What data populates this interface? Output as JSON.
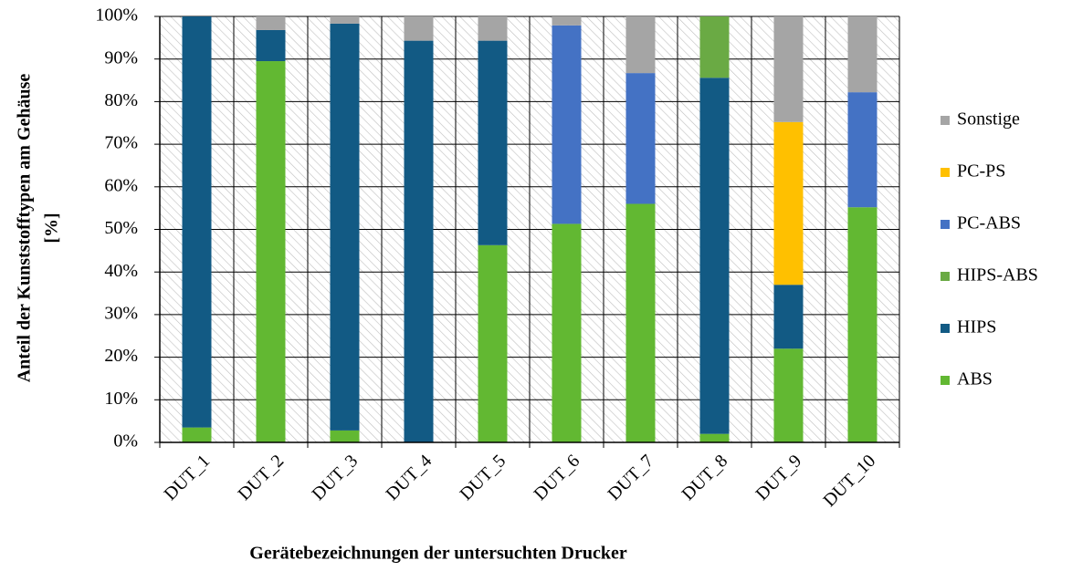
{
  "chart_data": {
    "type": "stacked_bar",
    "xlabel": "Gerätebezeichnungen der untersuchten Drucker",
    "ylabel": [
      "Anteil der Kunststofftypen am Gehäuse",
      "[%]"
    ],
    "categories": [
      "DUT_1",
      "DUT_2",
      "DUT_3",
      "DUT_4",
      "DUT_5",
      "DUT_6",
      "DUT_7",
      "DUT_8",
      "DUT_9",
      "DUT_10"
    ],
    "series": [
      {
        "name": "ABS",
        "color": "#62b832",
        "values": [
          3.5,
          89.5,
          2.8,
          0,
          46.3,
          51.3,
          56,
          2,
          22,
          55.2
        ]
      },
      {
        "name": "HIPS",
        "color": "#125a84",
        "values": [
          96.5,
          7.3,
          95.5,
          94.3,
          48,
          0,
          0,
          83.6,
          15,
          0
        ]
      },
      {
        "name": "HIPS-ABS",
        "color": "#6aaa44",
        "values": [
          0,
          0,
          0,
          0,
          0,
          0,
          0,
          14.4,
          0,
          0
        ]
      },
      {
        "name": "PC-ABS",
        "color": "#4472c4",
        "values": [
          0,
          0,
          0,
          0,
          0,
          46.6,
          30.7,
          0,
          0,
          27
        ]
      },
      {
        "name": "PC-PS",
        "color": "#ffc000",
        "values": [
          0,
          0,
          0,
          0,
          0,
          0,
          0,
          0,
          38.2,
          0
        ]
      },
      {
        "name": "Sonstige",
        "color": "#a5a5a5",
        "values": [
          0,
          3.2,
          1.7,
          5.7,
          5.7,
          2.1,
          13.3,
          0,
          24.8,
          17.8
        ]
      }
    ],
    "ylim": [
      0,
      100
    ],
    "yticks": [
      {
        "value": 0,
        "label": "0%"
      },
      {
        "value": 10,
        "label": "10%"
      },
      {
        "value": 20,
        "label": "20%"
      },
      {
        "value": 30,
        "label": "30%"
      },
      {
        "value": 40,
        "label": "40%"
      },
      {
        "value": 50,
        "label": "50%"
      },
      {
        "value": 60,
        "label": "60%"
      },
      {
        "value": 70,
        "label": "70%"
      },
      {
        "value": 80,
        "label": "80%"
      },
      {
        "value": 90,
        "label": "90%"
      },
      {
        "value": 100,
        "label": "100%"
      }
    ],
    "grid": true,
    "legend": "right"
  }
}
